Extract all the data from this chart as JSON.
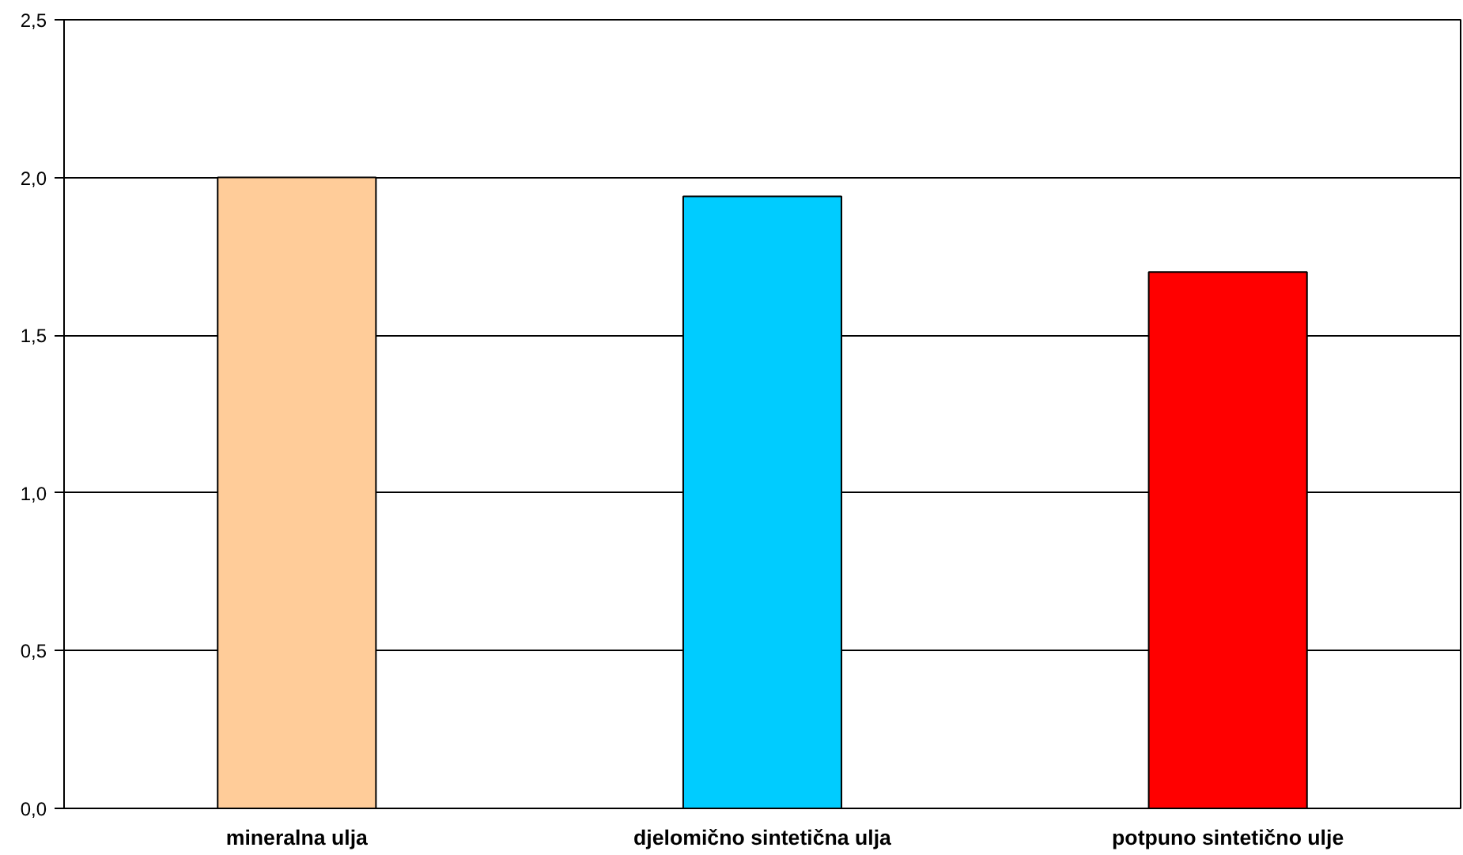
{
  "chart_data": {
    "type": "bar",
    "categories": [
      "mineralna ulja",
      "djelomično sintetična ulja",
      "potpuno sintetično ulje"
    ],
    "values": [
      2.0,
      1.94,
      1.7
    ],
    "colors": [
      "#ffcc99",
      "#00ccff",
      "#ff0000"
    ],
    "ylim": [
      0,
      2.5
    ],
    "yticks": [
      {
        "value": 0,
        "label": "0,0"
      },
      {
        "value": 0.5,
        "label": "0,5"
      },
      {
        "value": 1.0,
        "label": "1,0"
      },
      {
        "value": 1.5,
        "label": "1,5"
      },
      {
        "value": 2.0,
        "label": "2,0"
      },
      {
        "value": 2.5,
        "label": "2,5"
      }
    ],
    "grid": "y"
  }
}
